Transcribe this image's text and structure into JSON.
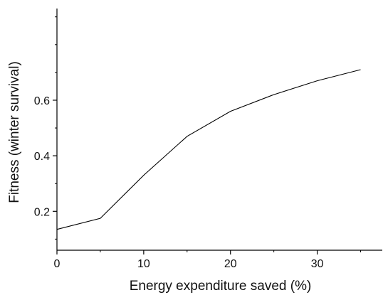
{
  "chart_data": {
    "type": "line",
    "title": "",
    "xlabel": "Energy expenditure  saved (%)",
    "ylabel": "Fitness (winter survival)",
    "xlim": [
      0,
      37.5
    ],
    "ylim": [
      0.06,
      0.93
    ],
    "x_ticks": [
      0,
      10,
      20,
      30
    ],
    "x_tick_labels": [
      "0",
      "10",
      "20",
      "30"
    ],
    "x_minor_ticks": [
      5,
      15,
      25,
      35
    ],
    "y_ticks": [
      0.2,
      0.4,
      0.6
    ],
    "y_tick_labels": [
      "0.2",
      "0.4",
      "0.6"
    ],
    "y_minor_ticks": [
      0.1,
      0.3,
      0.5,
      0.7,
      0.8,
      0.9
    ],
    "grid": false,
    "legend": "none",
    "series": [
      {
        "x": [
          0,
          5,
          10,
          15,
          20,
          25,
          30,
          35
        ],
        "y": [
          0.135,
          0.175,
          0.33,
          0.47,
          0.56,
          0.62,
          0.67,
          0.71
        ],
        "color": "#000000"
      }
    ]
  }
}
